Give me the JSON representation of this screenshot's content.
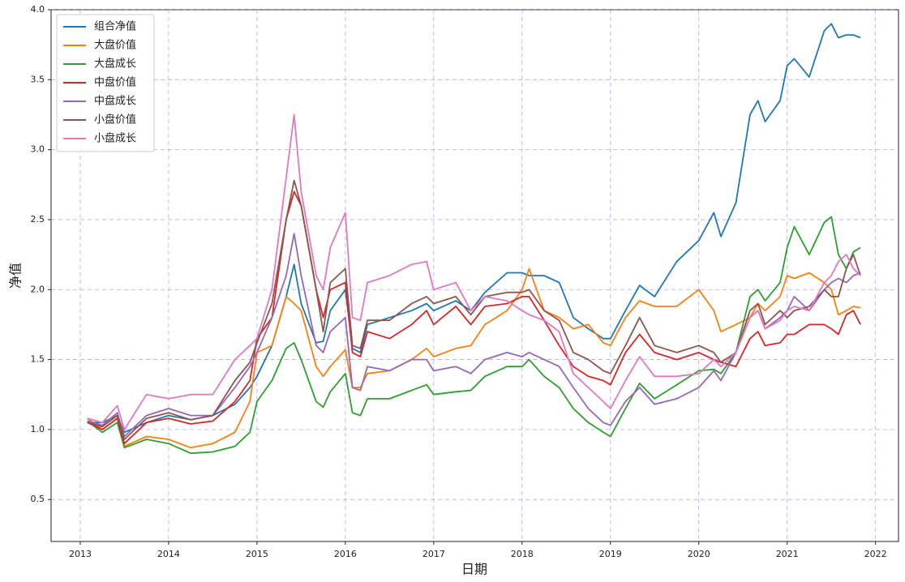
{
  "chart_data": {
    "type": "line",
    "x_label": "日期",
    "y_label": "净值",
    "x": [
      2013.08,
      2013.25,
      2013.42,
      2013.5,
      2013.75,
      2014.0,
      2014.25,
      2014.5,
      2014.75,
      2014.92,
      2015.0,
      2015.17,
      2015.33,
      2015.42,
      2015.5,
      2015.67,
      2015.75,
      2015.83,
      2016.0,
      2016.08,
      2016.17,
      2016.25,
      2016.5,
      2016.75,
      2016.92,
      2017.0,
      2017.25,
      2017.42,
      2017.58,
      2017.83,
      2018.0,
      2018.08,
      2018.25,
      2018.42,
      2018.58,
      2018.75,
      2018.92,
      2019.0,
      2019.17,
      2019.33,
      2019.5,
      2019.75,
      2020.0,
      2020.17,
      2020.25,
      2020.42,
      2020.58,
      2020.67,
      2020.75,
      2020.92,
      2021.0,
      2021.08,
      2021.25,
      2021.42,
      2021.5,
      2021.58,
      2021.67,
      2021.75,
      2021.83
    ],
    "series": [
      {
        "name": "组合净值",
        "color": "#1f77b4",
        "values": [
          1.05,
          1.05,
          1.1,
          0.98,
          1.05,
          1.1,
          1.07,
          1.1,
          1.18,
          1.3,
          1.38,
          1.6,
          1.95,
          2.18,
          1.9,
          1.62,
          1.63,
          1.85,
          2.0,
          1.58,
          1.55,
          1.75,
          1.8,
          1.85,
          1.9,
          1.85,
          1.92,
          1.85,
          1.98,
          2.12,
          2.12,
          2.1,
          2.1,
          2.05,
          1.8,
          1.72,
          1.65,
          1.65,
          1.85,
          2.03,
          1.95,
          2.2,
          2.35,
          2.55,
          2.38,
          2.62,
          3.25,
          3.35,
          3.2,
          3.35,
          3.6,
          3.65,
          3.52,
          3.85,
          3.9,
          3.8,
          3.82,
          3.82,
          3.8
        ]
      },
      {
        "name": "大盘价值",
        "color": "#ff7f0e",
        "values": [
          1.08,
          1.0,
          1.08,
          0.88,
          0.95,
          0.93,
          0.87,
          0.9,
          0.98,
          1.2,
          1.55,
          1.6,
          1.95,
          1.9,
          1.85,
          1.45,
          1.38,
          1.45,
          1.57,
          1.3,
          1.3,
          1.4,
          1.42,
          1.5,
          1.58,
          1.52,
          1.58,
          1.6,
          1.75,
          1.85,
          2.0,
          2.15,
          1.85,
          1.8,
          1.72,
          1.75,
          1.62,
          1.6,
          1.8,
          1.92,
          1.88,
          1.88,
          2.0,
          1.85,
          1.7,
          1.75,
          1.8,
          1.9,
          1.85,
          1.95,
          2.1,
          2.08,
          2.12,
          2.05,
          2.0,
          1.82,
          1.85,
          1.88,
          1.87
        ]
      },
      {
        "name": "大盘成长",
        "color": "#2ca02c",
        "values": [
          1.06,
          0.98,
          1.05,
          0.87,
          0.93,
          0.9,
          0.83,
          0.84,
          0.88,
          0.98,
          1.2,
          1.35,
          1.58,
          1.62,
          1.5,
          1.2,
          1.16,
          1.27,
          1.4,
          1.12,
          1.1,
          1.22,
          1.22,
          1.28,
          1.32,
          1.25,
          1.27,
          1.28,
          1.38,
          1.45,
          1.45,
          1.5,
          1.38,
          1.3,
          1.15,
          1.05,
          0.98,
          0.95,
          1.15,
          1.33,
          1.22,
          1.32,
          1.42,
          1.43,
          1.4,
          1.55,
          1.95,
          2.0,
          1.92,
          2.05,
          2.3,
          2.45,
          2.25,
          2.48,
          2.52,
          2.25,
          2.15,
          2.27,
          2.3
        ]
      },
      {
        "name": "中盘价值",
        "color": "#d62728",
        "values": [
          1.05,
          1.0,
          1.08,
          0.9,
          1.05,
          1.08,
          1.04,
          1.06,
          1.2,
          1.35,
          1.65,
          1.8,
          2.5,
          2.7,
          2.6,
          2.0,
          1.8,
          2.0,
          2.05,
          1.55,
          1.52,
          1.7,
          1.65,
          1.75,
          1.85,
          1.75,
          1.88,
          1.75,
          1.88,
          1.9,
          1.95,
          1.95,
          1.78,
          1.6,
          1.45,
          1.38,
          1.35,
          1.32,
          1.55,
          1.68,
          1.55,
          1.5,
          1.55,
          1.5,
          1.48,
          1.45,
          1.65,
          1.7,
          1.6,
          1.62,
          1.68,
          1.68,
          1.75,
          1.75,
          1.72,
          1.68,
          1.82,
          1.85,
          1.75
        ]
      },
      {
        "name": "中盘成长",
        "color": "#9467bd",
        "values": [
          1.06,
          1.03,
          1.12,
          0.95,
          1.1,
          1.15,
          1.1,
          1.1,
          1.3,
          1.45,
          1.55,
          1.8,
          2.1,
          2.4,
          2.1,
          1.6,
          1.55,
          1.7,
          1.8,
          1.3,
          1.28,
          1.45,
          1.42,
          1.5,
          1.5,
          1.42,
          1.45,
          1.4,
          1.5,
          1.55,
          1.52,
          1.55,
          1.5,
          1.45,
          1.3,
          1.15,
          1.05,
          1.03,
          1.2,
          1.3,
          1.18,
          1.22,
          1.3,
          1.42,
          1.35,
          1.55,
          1.8,
          1.85,
          1.72,
          1.8,
          1.85,
          1.95,
          1.85,
          2.0,
          2.05,
          2.08,
          2.05,
          2.1,
          2.12
        ]
      },
      {
        "name": "小盘价值",
        "color": "#8c564b",
        "values": [
          1.05,
          1.02,
          1.1,
          0.93,
          1.08,
          1.12,
          1.07,
          1.1,
          1.35,
          1.48,
          1.62,
          1.9,
          2.5,
          2.78,
          2.6,
          2.0,
          1.7,
          2.05,
          2.15,
          1.6,
          1.58,
          1.78,
          1.78,
          1.9,
          1.95,
          1.9,
          1.95,
          1.82,
          1.95,
          1.98,
          1.98,
          2.0,
          1.85,
          1.78,
          1.55,
          1.5,
          1.42,
          1.4,
          1.6,
          1.8,
          1.6,
          1.55,
          1.6,
          1.55,
          1.48,
          1.55,
          1.85,
          1.9,
          1.75,
          1.85,
          1.8,
          1.85,
          1.88,
          2.0,
          1.95,
          1.95,
          2.15,
          2.25,
          2.1
        ]
      },
      {
        "name": "小盘成长",
        "color": "#e377c2",
        "values": [
          1.08,
          1.05,
          1.17,
          1.0,
          1.25,
          1.22,
          1.25,
          1.25,
          1.5,
          1.6,
          1.65,
          2.0,
          2.8,
          3.25,
          2.7,
          2.1,
          2.0,
          2.3,
          2.55,
          1.8,
          1.78,
          2.05,
          2.1,
          2.18,
          2.2,
          2.0,
          2.05,
          1.85,
          1.95,
          1.92,
          1.85,
          1.82,
          1.78,
          1.7,
          1.4,
          1.3,
          1.2,
          1.15,
          1.35,
          1.52,
          1.38,
          1.38,
          1.4,
          1.5,
          1.45,
          1.55,
          1.8,
          1.85,
          1.72,
          1.78,
          1.85,
          1.88,
          1.85,
          2.05,
          2.1,
          2.2,
          2.25,
          2.15,
          2.1
        ]
      }
    ],
    "xlim": [
      2012.67,
      2022.26
    ],
    "xticks": [
      2013,
      2014,
      2015,
      2016,
      2017,
      2018,
      2019,
      2020,
      2021,
      2022
    ],
    "ylim": [
      0.2,
      4.0
    ],
    "yticks": [
      0.5,
      {
        "value": 1,
        "label": "1.0"
      },
      1.5,
      {
        "value": 2,
        "label": "2.0"
      },
      2.5,
      {
        "value": 3,
        "label": "3.0"
      },
      3.5,
      {
        "value": 4,
        "label": "4.0"
      }
    ],
    "grid": true,
    "legend": "upper left"
  }
}
